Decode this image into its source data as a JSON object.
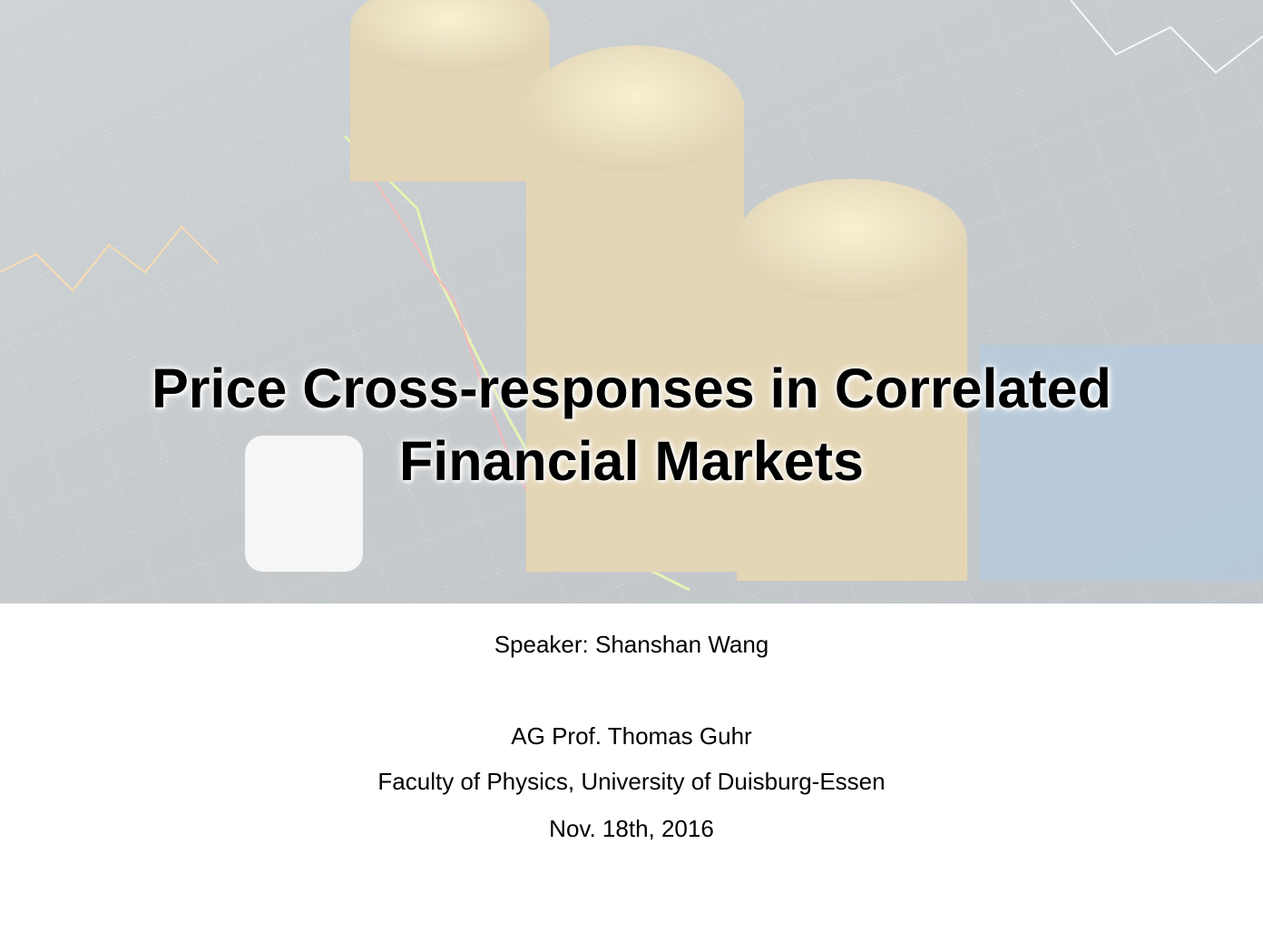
{
  "slide": {
    "title": "Price Cross-responses in Correlated Financial Markets",
    "speaker": "Speaker: Shanshan Wang",
    "details": [
      "AG  Prof. Thomas Guhr",
      "Faculty of Physics, University of Duisburg-Essen",
      "Nov. 18th, 2016"
    ]
  }
}
